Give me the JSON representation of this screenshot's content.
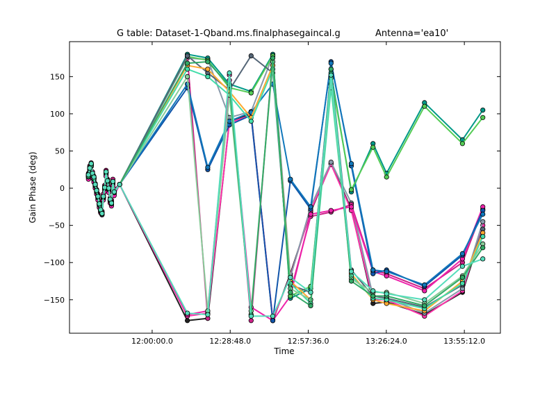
{
  "chart_data": {
    "type": "line",
    "title": "G table: Dataset-1-Qband.ms.finalphasegaincal.g",
    "subtitle": "Antenna='ea10'",
    "xlabel": "Time",
    "ylabel": "Gain Phase (deg)",
    "xlim": [
      "11:29:30",
      "14:08:30"
    ],
    "ylim": [
      -195,
      197
    ],
    "grid": false,
    "marker": "circle",
    "x_ticks": [
      "12:00:00.0",
      "12:28:48.0",
      "12:57:36.0",
      "13:26:24.0",
      "13:55:12.0"
    ],
    "y_ticks": [
      150,
      100,
      50,
      0,
      -50,
      -100,
      -150
    ],
    "x": [
      "11:36:30",
      "11:37:00",
      "11:37:30",
      "11:38:00",
      "11:38:30",
      "11:39:00",
      "11:39:30",
      "11:40:00",
      "11:40:30",
      "11:41:00",
      "11:41:30",
      "11:42:00",
      "11:42:30",
      "11:43:00",
      "11:43:30",
      "11:44:00",
      "11:44:30",
      "11:45:00",
      "11:45:30",
      "11:46:00",
      "11:48:00",
      "12:13:00",
      "12:20:30",
      "12:28:30",
      "12:36:30",
      "12:44:30",
      "12:51:00",
      "12:58:30",
      "13:06:00",
      "13:13:30",
      "13:21:30",
      "13:26:30",
      "13:40:30",
      "13:54:30",
      "14:02:00"
    ],
    "series": [
      {
        "values": [
          18,
          28,
          33,
          20,
          15,
          5,
          -3,
          -10,
          -20,
          -28,
          -35,
          -12,
          0,
          22,
          10,
          0,
          -15,
          -20,
          8,
          -5,
          5,
          -178,
          -175,
          90,
          100,
          -178,
          -115,
          -32,
          33,
          -28,
          -155,
          -153,
          -170,
          -140,
          -55
        ],
        "color": "#222222"
      },
      {
        "values": [
          15,
          25,
          32,
          18,
          12,
          3,
          -5,
          -12,
          -22,
          -30,
          -33,
          -10,
          2,
          20,
          8,
          -2,
          -17,
          -18,
          10,
          -3,
          5,
          -172,
          -168,
          88,
          98,
          -176,
          -118,
          -30,
          32,
          -30,
          -150,
          -150,
          -172,
          -138,
          -50
        ],
        "color": "#ff33aa"
      },
      {
        "values": [
          14,
          24,
          30,
          16,
          10,
          2,
          -6,
          -14,
          -24,
          -32,
          -35,
          -14,
          -2,
          18,
          6,
          -4,
          -18,
          -22,
          6,
          -8,
          5,
          175,
          173,
          95,
          103,
          178,
          -120,
          -25,
          35,
          -20,
          -145,
          -148,
          -168,
          -135,
          -45
        ],
        "color": "#8899aa"
      },
      {
        "values": [
          20,
          30,
          34,
          22,
          16,
          6,
          -2,
          -8,
          -18,
          -26,
          -31,
          -8,
          4,
          24,
          12,
          2,
          -13,
          -16,
          12,
          -1,
          5,
          178,
          -175,
          152,
          -178,
          178,
          -140,
          -38,
          -32,
          -22,
          -110,
          -115,
          -135,
          -100,
          -28
        ],
        "color": "#cc2288"
      },
      {
        "values": [
          12,
          22,
          29,
          14,
          8,
          0,
          -8,
          -16,
          -26,
          -33,
          -36,
          -16,
          -4,
          16,
          4,
          -6,
          -20,
          -24,
          4,
          -10,
          5,
          -170,
          -165,
          145,
          -160,
          -178,
          -145,
          -35,
          -30,
          -25,
          -112,
          -118,
          -138,
          -95,
          -25
        ],
        "color": "#ee22aa"
      },
      {
        "values": [
          16,
          26,
          31,
          19,
          13,
          4,
          -4,
          -11,
          -21,
          -29,
          -34,
          -11,
          1,
          21,
          9,
          -1,
          -16,
          -19,
          9,
          -4,
          5,
          135,
          25,
          85,
          98,
          -178,
          10,
          -28,
          170,
          30,
          -115,
          -110,
          -132,
          -90,
          -30
        ],
        "color": "#1155aa"
      },
      {
        "values": [
          17,
          27,
          32,
          19,
          14,
          5,
          -3,
          -12,
          -21,
          -30,
          -33,
          -13,
          0,
          21,
          11,
          0,
          -15,
          -21,
          7,
          -6,
          5,
          140,
          28,
          90,
          102,
          140,
          12,
          -25,
          168,
          33,
          -110,
          -112,
          -130,
          -88,
          -35
        ],
        "color": "#1177bb"
      },
      {
        "values": [
          17,
          27,
          31,
          18,
          13,
          4,
          -4,
          -11,
          -21,
          -29,
          -34,
          -12,
          1,
          22,
          9,
          -1,
          -16,
          -20,
          8,
          -5,
          5,
          180,
          175,
          140,
          130,
          180,
          -148,
          -135,
          155,
          -5,
          60,
          20,
          115,
          65,
          105
        ],
        "color": "#009988"
      },
      {
        "values": [
          18,
          28,
          32,
          19,
          14,
          5,
          -3,
          -11,
          -21,
          -29,
          -34,
          -12,
          1,
          22,
          9,
          -1,
          -16,
          -20,
          8,
          -5,
          5,
          177,
          172,
          135,
          128,
          178,
          -145,
          -132,
          150,
          -2,
          55,
          15,
          110,
          60,
          95
        ],
        "color": "#55cc55"
      },
      {
        "values": [
          19,
          28,
          33,
          20,
          15,
          6,
          -2,
          -10,
          -20,
          -28,
          -33,
          -11,
          2,
          22,
          10,
          0,
          -15,
          -19,
          9,
          -4,
          5,
          178,
          155,
          132,
          178,
          155,
          -130,
          -140,
          160,
          -110,
          -145,
          -148,
          -160,
          -130,
          -55
        ],
        "color": "#556677"
      },
      {
        "values": [
          16,
          26,
          31,
          18,
          13,
          4,
          -4,
          -12,
          -22,
          -30,
          -34,
          -12,
          0,
          21,
          9,
          -1,
          -16,
          -20,
          8,
          -5,
          5,
          165,
          160,
          130,
          95,
          165,
          -125,
          -150,
          140,
          -115,
          -150,
          -155,
          -165,
          -125,
          -60
        ],
        "color": "#ffaa33"
      },
      {
        "values": [
          15,
          25,
          30,
          17,
          12,
          3,
          -5,
          -13,
          -23,
          -31,
          -35,
          -13,
          -1,
          20,
          8,
          -2,
          -17,
          -21,
          7,
          -6,
          5,
          160,
          150,
          125,
          90,
          160,
          -128,
          -155,
          135,
          -118,
          -148,
          -150,
          -162,
          -128,
          -65
        ],
        "color": "#44ddaa"
      },
      {
        "values": [
          17,
          26,
          32,
          19,
          14,
          5,
          -3,
          -11,
          -21,
          -29,
          -34,
          -12,
          1,
          22,
          9,
          -1,
          -16,
          -20,
          8,
          -5,
          5,
          150,
          -165,
          125,
          -165,
          170,
          -135,
          -150,
          148,
          -122,
          -140,
          -140,
          -155,
          -118,
          -75
        ],
        "color": "#88cc99"
      },
      {
        "values": [
          16,
          27,
          31,
          18,
          13,
          4,
          -4,
          -12,
          -22,
          -30,
          -34,
          -12,
          0,
          21,
          9,
          -1,
          -16,
          -20,
          8,
          -5,
          5,
          168,
          170,
          138,
          -170,
          175,
          -140,
          -158,
          160,
          -125,
          -145,
          -145,
          -158,
          -120,
          -80
        ],
        "color": "#33aa66"
      },
      {
        "values": [
          18,
          27,
          33,
          20,
          15,
          5,
          -3,
          -11,
          -21,
          -29,
          -34,
          -11,
          1,
          22,
          10,
          0,
          -15,
          -20,
          9,
          -5,
          5,
          -168,
          -170,
          155,
          -172,
          -172,
          -120,
          -140,
          152,
          -112,
          -138,
          -142,
          -150,
          -105,
          -95
        ],
        "color": "#55ddbb"
      }
    ]
  }
}
